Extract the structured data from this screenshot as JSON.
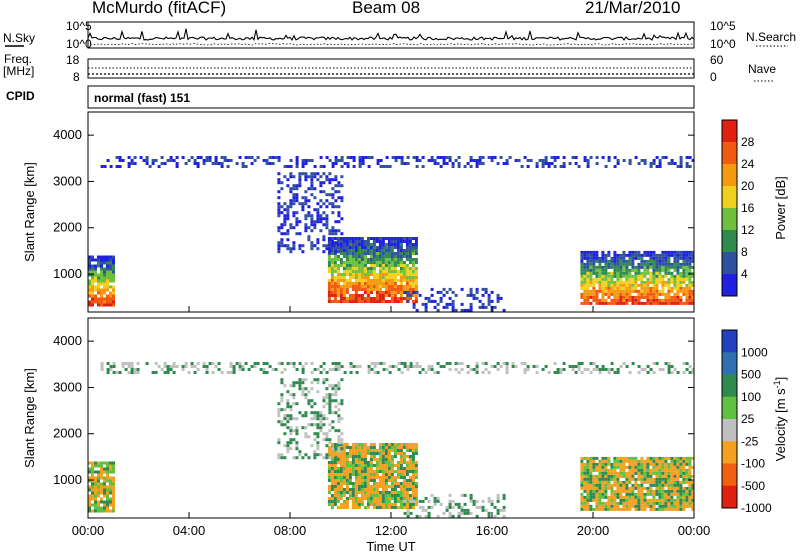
{
  "header": {
    "station": "McMurdo (fitACF)",
    "beam": "Beam 08",
    "date": "21/Mar/2010"
  },
  "top_panels": {
    "nsky_label": "N.Sky",
    "nsky_ticks": [
      "10^5",
      "10^0"
    ],
    "nsearch_label": "N.Search",
    "nsearch_ticks": [
      "10^5",
      "10^0"
    ],
    "freq_label_1": "Freq.",
    "freq_label_2": "[MHz]",
    "freq_ticks": [
      "18",
      "8"
    ],
    "nave_label": "Nave",
    "nave_ticks": [
      "60",
      "0"
    ],
    "cpid_label": "CPID",
    "cpid_value": "normal (fast) 151"
  },
  "chart_data": [
    {
      "type": "heatmap",
      "name": "power",
      "ylabel": "Slant Range [km]",
      "ylim": [
        180,
        4500
      ],
      "yticks": [
        "4000",
        "3000",
        "2000",
        "1000"
      ],
      "colorbar_label": "Power [dB]",
      "colorbar_ticks": [
        "28",
        "24",
        "20",
        "16",
        "12",
        "8",
        "4"
      ],
      "colorbar_colors": [
        "#e02010",
        "#f25a10",
        "#f59a10",
        "#f2d020",
        "#70c040",
        "#2f8a50",
        "#3050a0",
        "#2020e0"
      ],
      "echo_regions": [
        {
          "t": [
            0.0,
            1.0
          ],
          "r": [
            300,
            1400
          ],
          "band": "strong"
        },
        {
          "t": [
            9.5,
            13.0
          ],
          "r": [
            400,
            1800
          ],
          "band": "strong"
        },
        {
          "t": [
            19.5,
            24.0
          ],
          "r": [
            350,
            1500
          ],
          "band": "strong"
        },
        {
          "t": [
            7.5,
            10.0
          ],
          "r": [
            1500,
            3200
          ],
          "band": "weak"
        },
        {
          "t": [
            12.5,
            16.5
          ],
          "r": [
            200,
            700
          ],
          "band": "weak"
        },
        {
          "t": [
            0.5,
            24.0
          ],
          "r": [
            3350,
            3550
          ],
          "band": "weak"
        }
      ]
    },
    {
      "type": "heatmap",
      "name": "velocity",
      "ylabel": "Slant Range [km]",
      "ylim": [
        180,
        4500
      ],
      "yticks": [
        "4000",
        "3000",
        "2000",
        "1000"
      ],
      "xlabel": "Time UT",
      "xticks": [
        "00:00",
        "04:00",
        "08:00",
        "12:00",
        "16:00",
        "20:00",
        "00:00"
      ],
      "xlim": [
        0,
        24
      ],
      "colorbar_label": "Velocity [m s",
      "colorbar_label_sup": "-1",
      "colorbar_label_end": "]",
      "colorbar_ticks": [
        "1000",
        "500",
        "100",
        "25",
        "-25",
        "-100",
        "-500",
        "-1000"
      ],
      "colorbar_colors": [
        "#2040c0",
        "#3070b0",
        "#2f8a50",
        "#60c040",
        "#c0c0c0",
        "#f5a020",
        "#f06010",
        "#e02010"
      ]
    }
  ]
}
